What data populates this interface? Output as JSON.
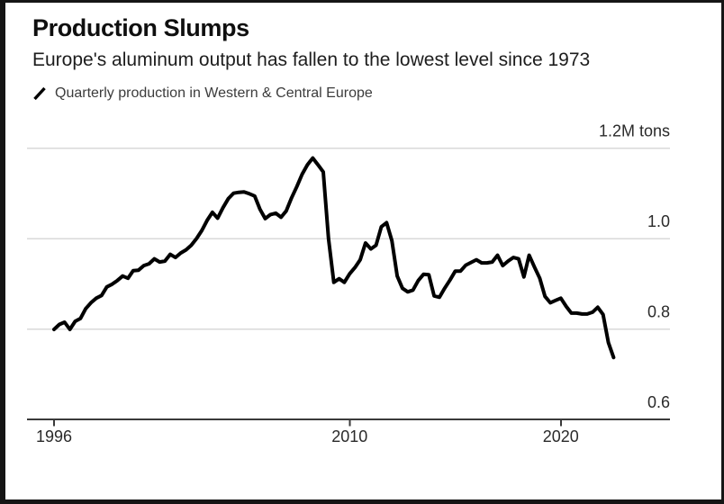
{
  "colors": {
    "background": "#ffffff",
    "frame": "#151515",
    "title_text": "#0f0f0f",
    "subtitle_text": "#1d1d1d",
    "legend_text": "#3c3c3c",
    "line": "#000000",
    "grid": "#d9d9d9",
    "axis": "#3a3a3a",
    "tick_text": "#2a2a2a"
  },
  "chart_data": {
    "type": "line",
    "title": "Production Slumps",
    "subtitle": "Europe's aluminum output has fallen to the lowest level since 1973",
    "legend_icon": "slash-icon",
    "grid": "horizontal",
    "legend_position": "top-left",
    "ylim": [
      0.6,
      1.2
    ],
    "xlim": [
      1995.75,
      2023.2
    ],
    "y_ticks": [
      {
        "value": 1.2,
        "label": "1.2M tons"
      },
      {
        "value": 1.0,
        "label": "1.0"
      },
      {
        "value": 0.8,
        "label": "0.8"
      },
      {
        "value": 0.6,
        "label": "0.6"
      }
    ],
    "x_ticks": [
      {
        "value": 1996,
        "label": "1996"
      },
      {
        "value": 2010,
        "label": "2010"
      },
      {
        "value": 2020,
        "label": "2020"
      }
    ],
    "series": [
      {
        "name": "Quarterly production in Western & Central Europe",
        "unit": "M tons",
        "frequency": "quarterly",
        "start_year": 1996,
        "start_quarter": 1,
        "values": [
          0.799,
          0.81,
          0.815,
          0.799,
          0.817,
          0.823,
          0.845,
          0.858,
          0.868,
          0.874,
          0.893,
          0.899,
          0.907,
          0.917,
          0.912,
          0.929,
          0.93,
          0.94,
          0.944,
          0.955,
          0.948,
          0.95,
          0.965,
          0.958,
          0.968,
          0.975,
          0.985,
          1.0,
          1.018,
          1.04,
          1.058,
          1.045,
          1.068,
          1.088,
          1.1,
          1.102,
          1.103,
          1.099,
          1.094,
          1.065,
          1.044,
          1.053,
          1.056,
          1.047,
          1.061,
          1.09,
          1.115,
          1.142,
          1.163,
          1.178,
          1.163,
          1.147,
          1.0,
          0.903,
          0.911,
          0.903,
          0.922,
          0.936,
          0.953,
          0.99,
          0.977,
          0.985,
          1.026,
          1.035,
          0.995,
          0.917,
          0.89,
          0.882,
          0.886,
          0.907,
          0.921,
          0.92,
          0.873,
          0.87,
          0.89,
          0.908,
          0.928,
          0.928,
          0.941,
          0.947,
          0.953,
          0.946,
          0.946,
          0.948,
          0.963,
          0.94,
          0.95,
          0.958,
          0.955,
          0.915,
          0.963,
          0.937,
          0.912,
          0.872,
          0.858,
          0.863,
          0.868,
          0.85,
          0.835,
          0.835,
          0.833,
          0.833,
          0.837,
          0.848,
          0.832,
          0.77,
          0.737
        ]
      }
    ]
  }
}
